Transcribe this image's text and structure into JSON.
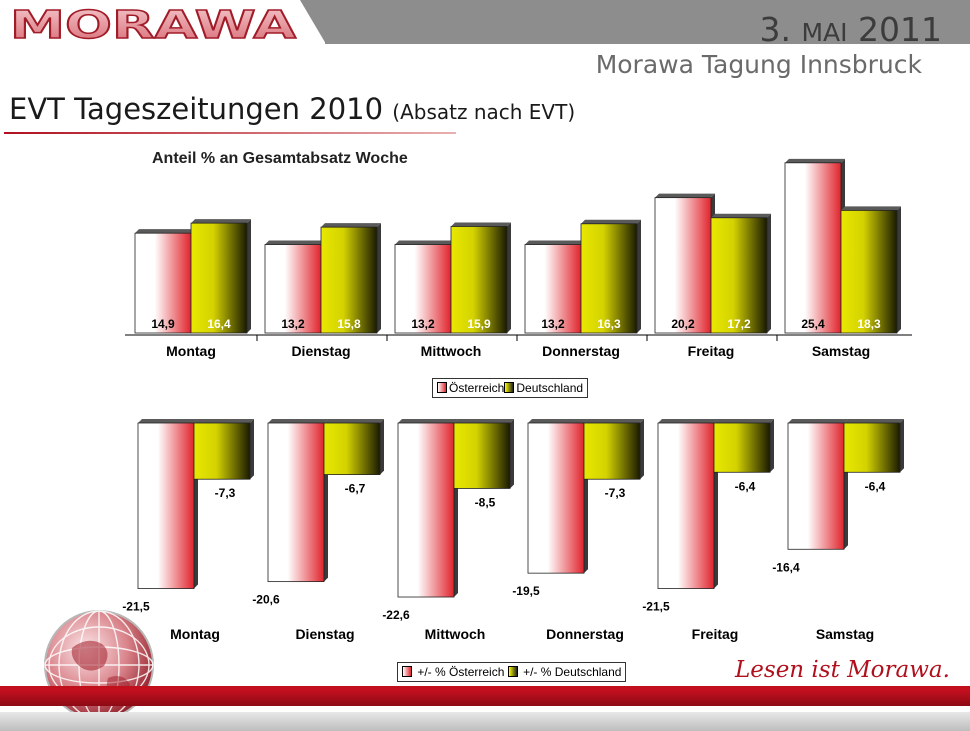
{
  "header": {
    "logo_text": "MORAWA",
    "date_main": "3. ",
    "date_month": "MAI",
    "date_year": " 2011",
    "event": "Morawa Tagung Innsbruck",
    "title": "EVT Tageszeitungen 2010",
    "title_sub": "(Absatz nach EVT)"
  },
  "footer": {
    "slogan": "Lesen ist Morawa."
  },
  "colors": {
    "austria": "#e0242c",
    "germany": "#e8e800",
    "brand_red": "#c0101c"
  },
  "chart_data": [
    {
      "type": "bar",
      "title": "Anteil % an Gesamtabsatz Woche",
      "categories": [
        "Montag",
        "Dienstag",
        "Mittwoch",
        "Donnerstag",
        "Freitag",
        "Samstag"
      ],
      "series": [
        {
          "name": "Österreich",
          "values": [
            14.9,
            13.2,
            13.2,
            13.2,
            20.2,
            25.4
          ],
          "labels": [
            "14,9",
            "13,2",
            "13,2",
            "13,2",
            "20,2",
            "25,4"
          ]
        },
        {
          "name": "Deutschland",
          "values": [
            16.4,
            15.8,
            15.9,
            16.3,
            17.2,
            18.3
          ],
          "labels": [
            "16,4",
            "15,8",
            "15,9",
            "16,3",
            "17,2",
            "18,3"
          ]
        }
      ],
      "ylim": [
        0,
        26.5
      ],
      "legend": "bottom"
    },
    {
      "type": "bar",
      "title": "",
      "categories": [
        "Montag",
        "Dienstag",
        "Mittwoch",
        "Donnerstag",
        "Freitag",
        "Samstag"
      ],
      "series": [
        {
          "name": "+/- % Österreich",
          "values": [
            -21.5,
            -20.6,
            -22.6,
            -19.5,
            -21.5,
            -16.4
          ],
          "labels": [
            "-21,5",
            "-20,6",
            "-22,6",
            "-19,5",
            "-21,5",
            "-16,4"
          ]
        },
        {
          "name": "+/- % Deutschland",
          "values": [
            -7.3,
            -6.7,
            -8.5,
            -7.3,
            -6.4,
            -6.4
          ],
          "labels": [
            "-7,3",
            "-6,7",
            "-8,5",
            "-7,3",
            "-6,4",
            "-6,4"
          ]
        }
      ],
      "ylim": [
        -23,
        0
      ],
      "legend": "bottom"
    }
  ]
}
